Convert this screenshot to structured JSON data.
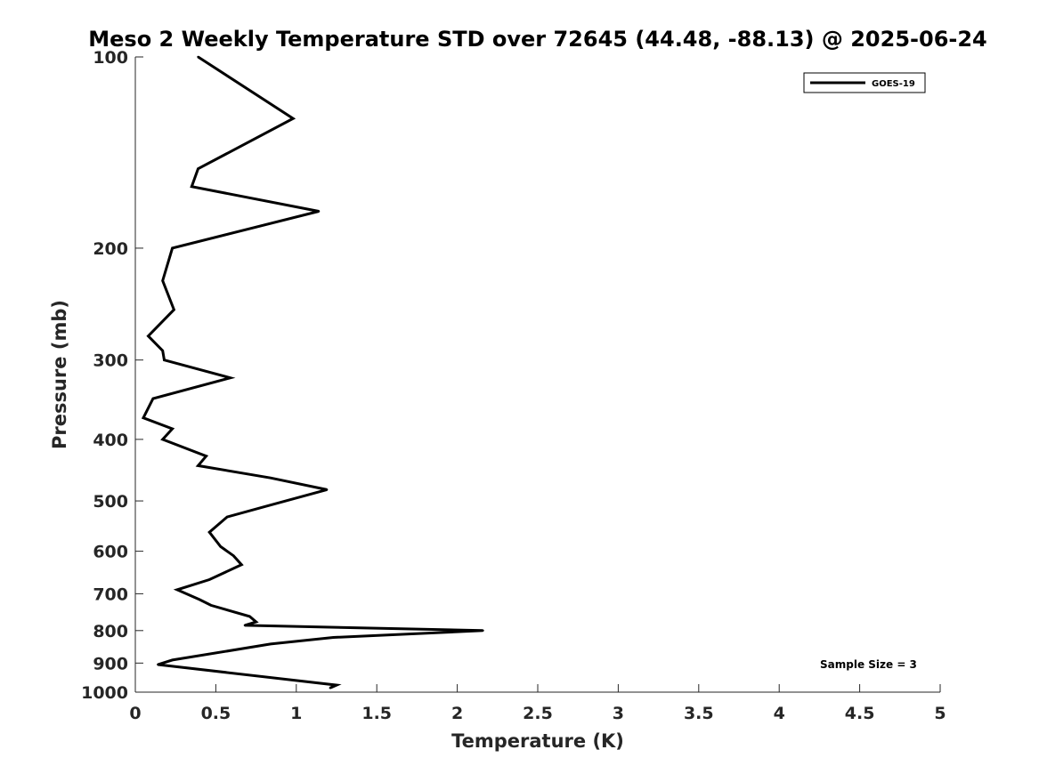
{
  "chart_data": {
    "type": "line",
    "title": "Meso 2 Weekly Temperature STD over 72645 (44.48, -88.13) @ 2025-06-24",
    "xlabel": "Temperature (K)",
    "ylabel": "Pressure (mb)",
    "xlim": [
      0,
      5
    ],
    "ylim": [
      100,
      1000
    ],
    "y_scale": "log",
    "y_direction": "reversed",
    "grid": false,
    "legend_position": "top-right",
    "x_ticks": [
      "0",
      "0.5",
      "1",
      "1.5",
      "2",
      "2.5",
      "3",
      "3.5",
      "4",
      "4.5",
      "5"
    ],
    "y_ticks": [
      "100",
      "200",
      "300",
      "400",
      "500",
      "600",
      "700",
      "800",
      "900",
      "1000"
    ],
    "annotation": "Sample Size = 3",
    "series": [
      {
        "name": "GOES-19",
        "color": "#000000",
        "points": [
          {
            "x": 0.39,
            "p": 100
          },
          {
            "x": 0.98,
            "p": 125
          },
          {
            "x": 0.39,
            "p": 150
          },
          {
            "x": 0.35,
            "p": 160
          },
          {
            "x": 1.14,
            "p": 175
          },
          {
            "x": 0.23,
            "p": 200
          },
          {
            "x": 0.17,
            "p": 225
          },
          {
            "x": 0.24,
            "p": 250
          },
          {
            "x": 0.08,
            "p": 275
          },
          {
            "x": 0.17,
            "p": 290
          },
          {
            "x": 0.18,
            "p": 300
          },
          {
            "x": 0.59,
            "p": 320
          },
          {
            "x": 0.11,
            "p": 345
          },
          {
            "x": 0.05,
            "p": 370
          },
          {
            "x": 0.23,
            "p": 385
          },
          {
            "x": 0.17,
            "p": 400
          },
          {
            "x": 0.44,
            "p": 425
          },
          {
            "x": 0.39,
            "p": 440
          },
          {
            "x": 0.84,
            "p": 460
          },
          {
            "x": 1.19,
            "p": 480
          },
          {
            "x": 0.81,
            "p": 510
          },
          {
            "x": 0.57,
            "p": 530
          },
          {
            "x": 0.46,
            "p": 560
          },
          {
            "x": 0.53,
            "p": 590
          },
          {
            "x": 0.61,
            "p": 610
          },
          {
            "x": 0.66,
            "p": 630
          },
          {
            "x": 0.46,
            "p": 665
          },
          {
            "x": 0.26,
            "p": 690
          },
          {
            "x": 0.4,
            "p": 715
          },
          {
            "x": 0.47,
            "p": 730
          },
          {
            "x": 0.71,
            "p": 760
          },
          {
            "x": 0.75,
            "p": 775
          },
          {
            "x": 0.68,
            "p": 785
          },
          {
            "x": 2.16,
            "p": 800
          },
          {
            "x": 1.23,
            "p": 820
          },
          {
            "x": 0.84,
            "p": 840
          },
          {
            "x": 0.23,
            "p": 890
          },
          {
            "x": 0.14,
            "p": 905
          },
          {
            "x": 1.25,
            "p": 975
          },
          {
            "x": 1.21,
            "p": 985
          }
        ]
      }
    ]
  }
}
